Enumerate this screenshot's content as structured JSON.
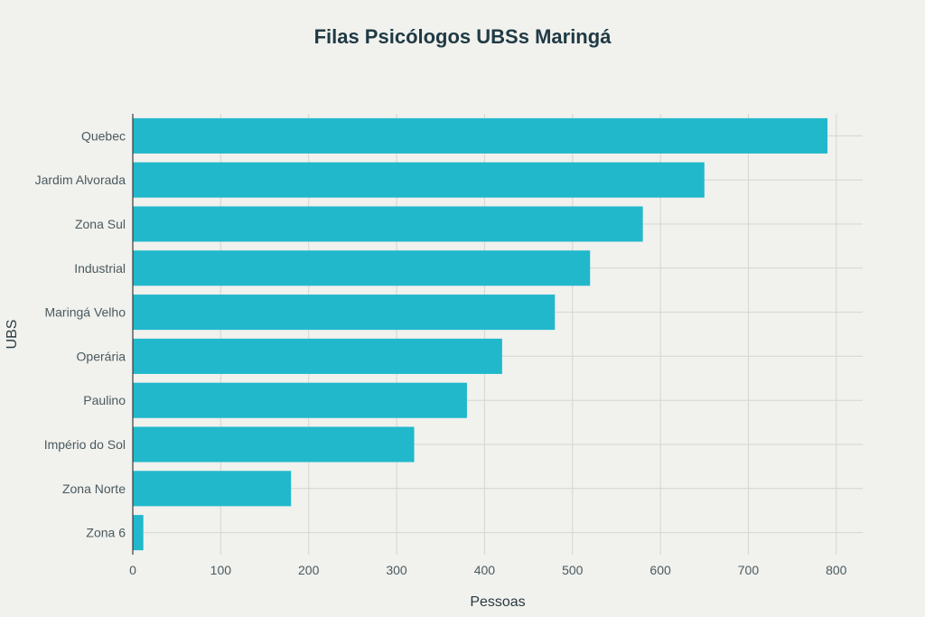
{
  "chart_data": {
    "type": "bar",
    "orientation": "horizontal",
    "title": "Filas Psicólogos UBSs Maringá",
    "xlabel": "Pessoas",
    "ylabel": "UBS",
    "categories": [
      "Quebec",
      "Jardim Alvorada",
      "Zona Sul",
      "Industrial",
      "Maringá Velho",
      "Operária",
      "Paulino",
      "Império do Sol",
      "Zona Norte",
      "Zona 6"
    ],
    "values": [
      790,
      650,
      580,
      520,
      480,
      420,
      380,
      320,
      180,
      12
    ],
    "xlim": [
      0,
      830
    ],
    "xticks": [
      0,
      100,
      200,
      300,
      400,
      500,
      600,
      700,
      800
    ],
    "grid": true,
    "bar_color": "#21b8cc"
  }
}
